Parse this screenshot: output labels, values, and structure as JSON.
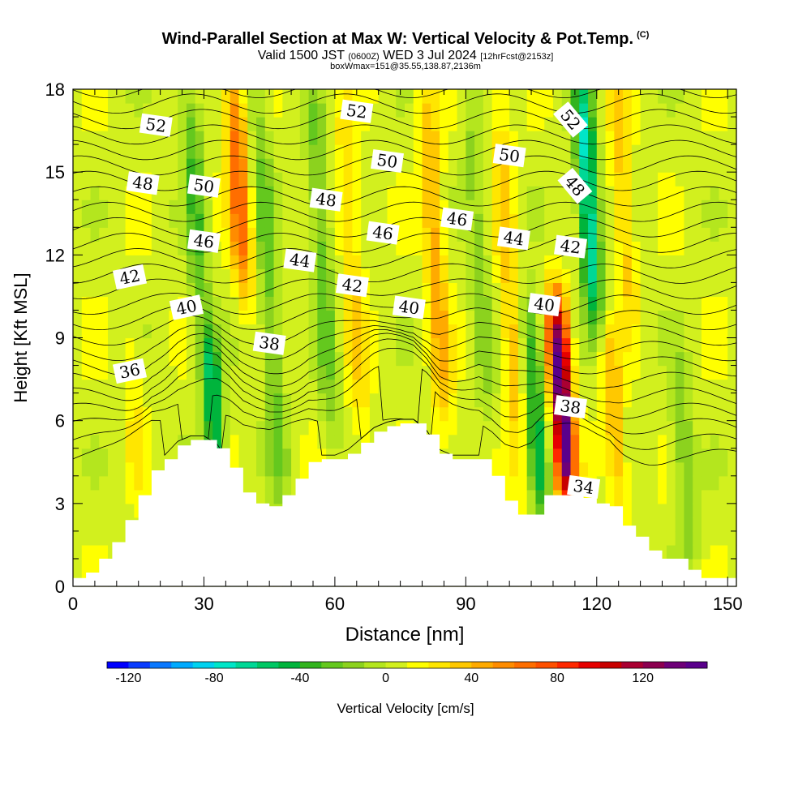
{
  "title": "Wind-Parallel Section at Max W: Vertical Velocity & Pot.Temp.",
  "title_mark": "(C)",
  "subtitle": {
    "main_a": "Valid 1500 JST",
    "zulu": "(0600Z)",
    "main_b": "WED 3 Jul 2024",
    "fcst": "[12hrFcst@2153z]"
  },
  "info_line": "boxWmax=151@35.55,138.87,2136m",
  "chart_data": {
    "type": "heatmap",
    "xlabel": "Distance [nm]",
    "ylabel": "Height [Kft MSL]",
    "xlim": [
      0,
      152
    ],
    "ylim": [
      0,
      18
    ],
    "xticks": [
      0,
      30,
      60,
      90,
      120,
      150
    ],
    "yticks": [
      0,
      3,
      6,
      9,
      12,
      15,
      18
    ],
    "terrain": {
      "x": [
        0,
        3,
        6,
        9,
        12,
        15,
        18,
        21,
        24,
        27,
        30,
        33,
        36,
        39,
        42,
        45,
        48,
        51,
        54,
        57,
        60,
        63,
        66,
        69,
        72,
        75,
        78,
        81,
        84,
        87,
        90,
        93,
        96,
        99,
        102,
        105,
        108,
        111,
        114,
        117,
        120,
        123,
        126,
        129,
        132,
        135,
        138,
        141,
        144,
        147,
        150,
        152
      ],
      "height_kft": [
        0.3,
        0.5,
        1.0,
        1.6,
        2.4,
        3.3,
        4.2,
        4.6,
        5.1,
        5.3,
        5.3,
        5.0,
        4.3,
        3.4,
        3.0,
        2.9,
        3.3,
        3.9,
        4.5,
        4.6,
        4.6,
        4.8,
        5.2,
        5.6,
        5.8,
        5.9,
        5.9,
        5.5,
        4.8,
        4.6,
        4.6,
        4.6,
        4.0,
        3.1,
        2.6,
        2.6,
        3.3,
        3.3,
        3.3,
        3.2,
        3.0,
        2.9,
        2.2,
        1.8,
        1.3,
        1.0,
        1.0,
        0.6,
        0.3,
        0.3,
        0.3,
        0.3
      ]
    },
    "vertical_velocity_features": [
      {
        "x": 38,
        "y_bottom": 11,
        "y_top": 18,
        "w_cm_s": 70
      },
      {
        "x": 32,
        "y_bottom": 4.5,
        "y_top": 9,
        "w_cm_s": -55
      },
      {
        "x": 28,
        "y_bottom": 10,
        "y_top": 18,
        "w_cm_s": -30
      },
      {
        "x": 45,
        "y_bottom": 3,
        "y_top": 18,
        "w_cm_s": -25
      },
      {
        "x": 57,
        "y_bottom": 6,
        "y_top": 18,
        "w_cm_s": -25
      },
      {
        "x": 64,
        "y_bottom": 5,
        "y_top": 18,
        "w_cm_s": 30
      },
      {
        "x": 83,
        "y_bottom": 6,
        "y_top": 18,
        "w_cm_s": 45
      },
      {
        "x": 93,
        "y_bottom": 6,
        "y_top": 18,
        "w_cm_s": -15
      },
      {
        "x": 100,
        "y_bottom": 3,
        "y_top": 18,
        "w_cm_s": 35
      },
      {
        "x": 106,
        "y_bottom": 3,
        "y_top": 10,
        "w_cm_s": -45
      },
      {
        "x": 112,
        "y_bottom": 3.5,
        "y_top": 10,
        "w_cm_s": 151
      },
      {
        "x": 118,
        "y_bottom": 10,
        "y_top": 18,
        "w_cm_s": -75
      },
      {
        "x": 124,
        "y_bottom": 3,
        "y_top": 9,
        "w_cm_s": 40
      },
      {
        "x": 126,
        "y_bottom": 10,
        "y_top": 18,
        "w_cm_s": 35
      },
      {
        "x": 14,
        "y_bottom": 4,
        "y_top": 9,
        "w_cm_s": 20
      },
      {
        "x": 140,
        "y_bottom": 1,
        "y_top": 8,
        "w_cm_s": -20
      }
    ],
    "theta_contours": [
      {
        "label": "52",
        "x": 19,
        "y": 16.7
      },
      {
        "label": "48",
        "x": 16,
        "y": 14.6
      },
      {
        "label": "50",
        "x": 30,
        "y": 14.5
      },
      {
        "label": "46",
        "x": 30,
        "y": 12.5
      },
      {
        "label": "42",
        "x": 13,
        "y": 11.2
      },
      {
        "label": "40",
        "x": 26,
        "y": 10.1
      },
      {
        "label": "36",
        "x": 13,
        "y": 7.8
      },
      {
        "label": "38",
        "x": 45,
        "y": 8.8
      },
      {
        "label": "44",
        "x": 52,
        "y": 11.8
      },
      {
        "label": "48",
        "x": 58,
        "y": 14.0
      },
      {
        "label": "52",
        "x": 65,
        "y": 17.2
      },
      {
        "label": "50",
        "x": 72,
        "y": 15.4
      },
      {
        "label": "46",
        "x": 71,
        "y": 12.8
      },
      {
        "label": "42",
        "x": 64,
        "y": 10.9
      },
      {
        "label": "40",
        "x": 77,
        "y": 10.1
      },
      {
        "label": "46",
        "x": 88,
        "y": 13.3
      },
      {
        "label": "50",
        "x": 100,
        "y": 15.6
      },
      {
        "label": "44",
        "x": 101,
        "y": 12.6
      },
      {
        "label": "52",
        "x": 114,
        "y": 16.9
      },
      {
        "label": "48",
        "x": 115,
        "y": 14.5
      },
      {
        "label": "42",
        "x": 114,
        "y": 12.3
      },
      {
        "label": "40",
        "x": 108,
        "y": 10.2
      },
      {
        "label": "38",
        "x": 114,
        "y": 6.5
      },
      {
        "label": "34",
        "x": 117,
        "y": 3.6
      }
    ],
    "colorbar": {
      "label": "Vertical Velocity [cm/s]",
      "ticks": [
        "-120",
        "-80",
        "-40",
        "0",
        "40",
        "80",
        "120"
      ],
      "min": -130,
      "max": 150,
      "step": 10,
      "colors": [
        "#0000ff",
        "#0a3cff",
        "#0a78ff",
        "#00aaff",
        "#00d2f0",
        "#00e6c8",
        "#00d896",
        "#00c864",
        "#00b43c",
        "#32b41e",
        "#64c81e",
        "#8cd21e",
        "#b4e61e",
        "#d2f01e",
        "#ffff00",
        "#ffe600",
        "#ffc800",
        "#ffaa00",
        "#ff8c00",
        "#ff6e00",
        "#ff5000",
        "#ff2800",
        "#e60000",
        "#c80000",
        "#aa0032",
        "#8c0050",
        "#6e0078",
        "#5a008c"
      ]
    }
  }
}
